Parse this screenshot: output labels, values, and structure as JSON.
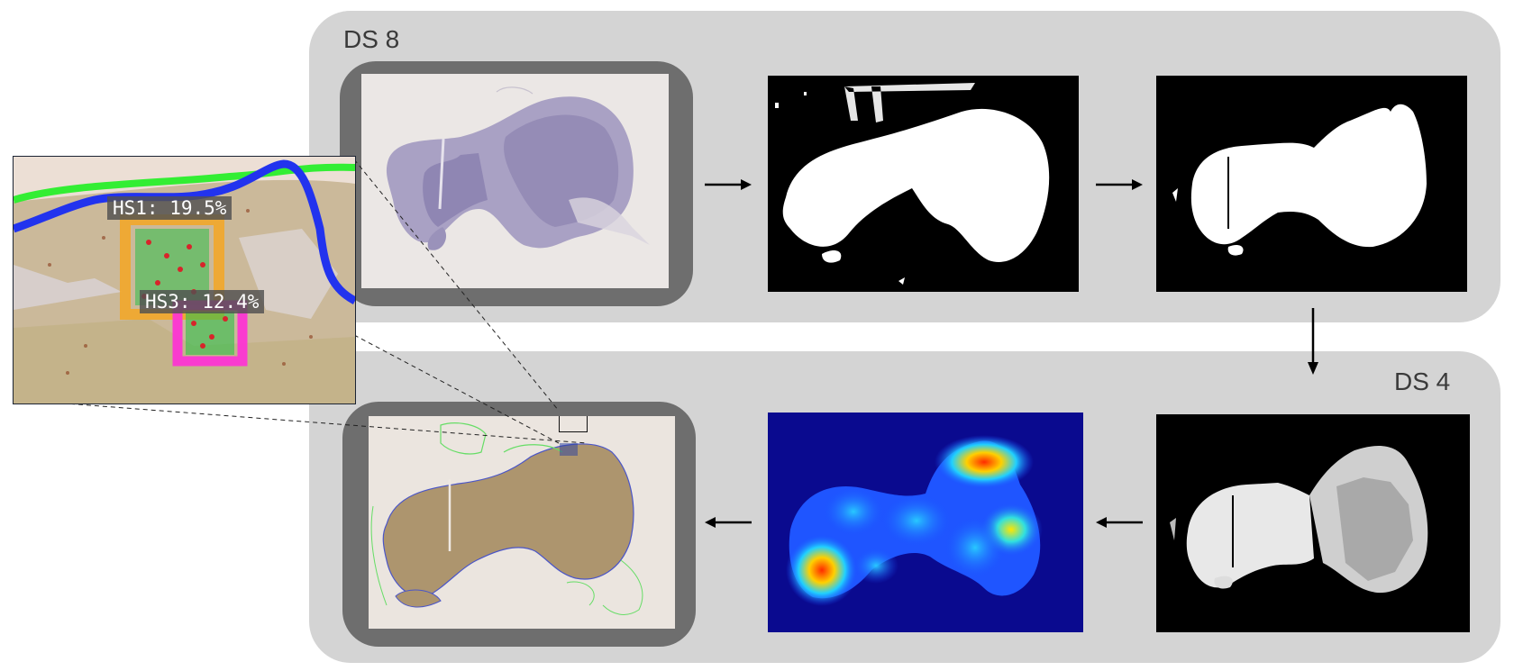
{
  "pipeline": {
    "top_stage_label": "DS 8",
    "bottom_stage_label": "DS 4"
  },
  "inset": {
    "hotspots": [
      {
        "label": "HS1: 19.5%",
        "color": "#f5a623"
      },
      {
        "label": "HS3: 12.4%",
        "color": "#ff2fd6"
      }
    ],
    "tumor_boundary_color": "#2233ee",
    "tissue_boundary_color": "#33ee33"
  },
  "colors": {
    "panel_bg": "#d4d4d4",
    "highlight_frame": "#6e6e6e",
    "heatmap_bg": "#0a0a8f"
  }
}
